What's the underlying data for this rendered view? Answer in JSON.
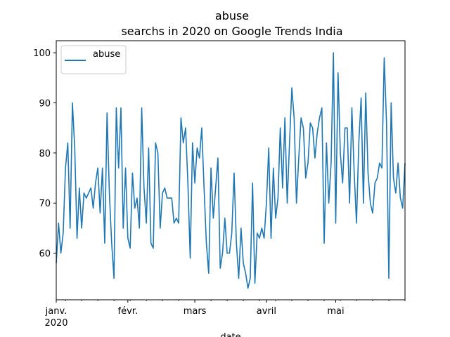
{
  "chart_data": {
    "type": "line",
    "title": "abuse",
    "subtitle": "searchs in 2020 on Google Trends India",
    "xlabel": "date",
    "ylabel": "",
    "x_start": "2020-01-01",
    "x_end": "2020-05-31",
    "xlim": [
      "2020-01-01",
      "2020-05-31"
    ],
    "ylim": [
      50.7,
      102.4
    ],
    "y_ticks": [
      60,
      70,
      80,
      90,
      100
    ],
    "x_ticks": [
      {
        "date": "2020-01-01",
        "label": "janv.",
        "sublabel": "2020"
      },
      {
        "date": "2020-02-01",
        "label": "févr.",
        "sublabel": ""
      },
      {
        "date": "2020-03-01",
        "label": "mars",
        "sublabel": ""
      },
      {
        "date": "2020-04-01",
        "label": "avril",
        "sublabel": ""
      },
      {
        "date": "2020-05-01",
        "label": "mai",
        "sublabel": ""
      }
    ],
    "grid": false,
    "legend_position": "top-left",
    "series": [
      {
        "name": "abuse",
        "color": "#1f77b4",
        "values": [
          58,
          66,
          60,
          64,
          77,
          82,
          65,
          90,
          81,
          63,
          73,
          65,
          72,
          71,
          72,
          73,
          69,
          74,
          77,
          68,
          77,
          62,
          88,
          72,
          62,
          55,
          89,
          77,
          89,
          65,
          77,
          63,
          61,
          76,
          69,
          71,
          65,
          89,
          73,
          66,
          81,
          62,
          61,
          82,
          80,
          65,
          72,
          73,
          71,
          71,
          71,
          66,
          67,
          66,
          87,
          82,
          85,
          74,
          59,
          82,
          74,
          81,
          79,
          85,
          73,
          62,
          56,
          77,
          67,
          73,
          79,
          57,
          60,
          67,
          60,
          60,
          64,
          76,
          62,
          55,
          65,
          58,
          56,
          53,
          55,
          74,
          54,
          64,
          63,
          65,
          63,
          70,
          81,
          63,
          77,
          67,
          71,
          85,
          73,
          87,
          70,
          82,
          93,
          87,
          70,
          79,
          87,
          85,
          75,
          78,
          86,
          85,
          79,
          84,
          87,
          89,
          62,
          82,
          70,
          78,
          100,
          66,
          96,
          80,
          74,
          85,
          85,
          70,
          89,
          76,
          66,
          82,
          91,
          70,
          92,
          76,
          70,
          68,
          74,
          75,
          78,
          77,
          99,
          86,
          55,
          90,
          75,
          72,
          78,
          71,
          69,
          78
        ]
      }
    ]
  }
}
